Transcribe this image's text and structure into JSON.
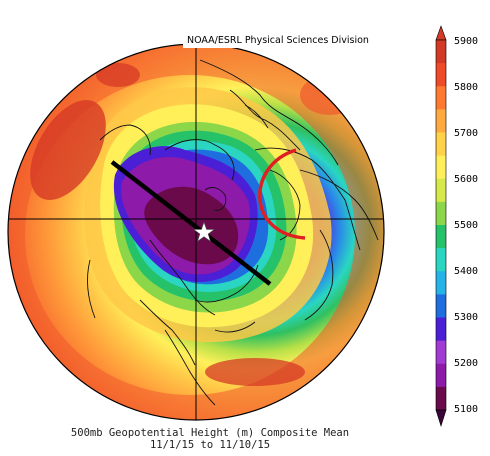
{
  "credit": "NOAA/ESRL Physical Sciences Division",
  "caption": {
    "title": "500mb Geopotential Height (m) Composite Mean",
    "dates": "11/1/15   to 11/10/15"
  },
  "colorbar": {
    "ticks": [
      "5900",
      "5800",
      "5700",
      "5600",
      "5500",
      "5400",
      "5300",
      "5200",
      "5100"
    ],
    "colors": [
      "#6a0a4a",
      "#8d1aa8",
      "#a23ad4",
      "#4a1fd6",
      "#1f6ee0",
      "#25b3e8",
      "#2ad6c2",
      "#26c26a",
      "#8cd64a",
      "#d6e84a",
      "#fff05a",
      "#ffd24a",
      "#ffaa40",
      "#ff7a30",
      "#ee4a28",
      "#d23a26"
    ]
  },
  "map": {
    "projection": "north-polar-stereographic",
    "marker": "star",
    "annotations": [
      "black-trough-axis-line",
      "red-ridge-arc"
    ]
  }
}
